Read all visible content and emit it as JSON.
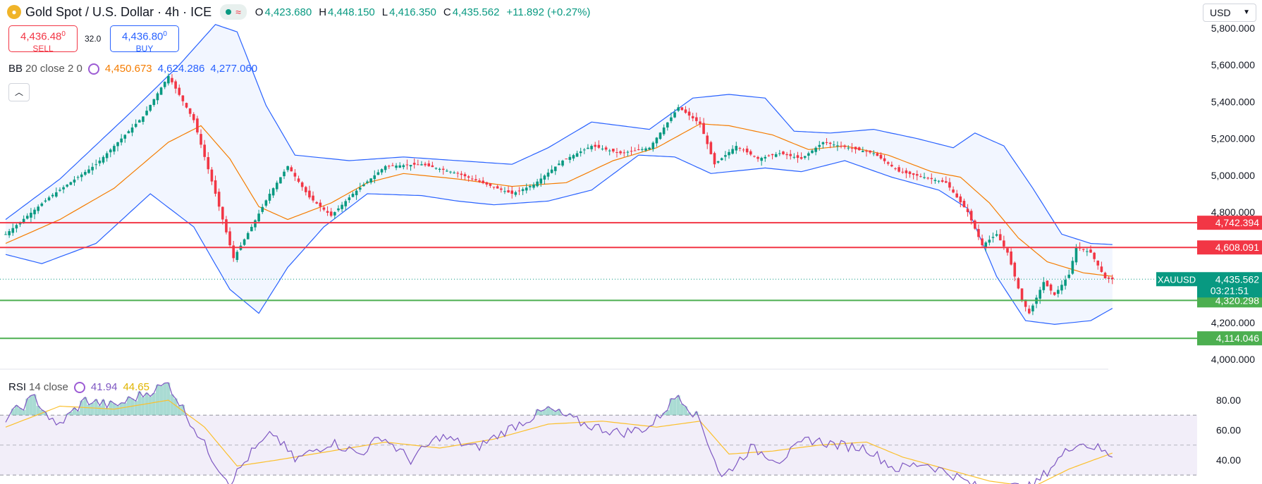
{
  "header": {
    "title": "Gold Spot / U.S. Dollar · 4h · ICE",
    "ohlc": [
      {
        "k": "O",
        "v": "4,423.680"
      },
      {
        "k": "H",
        "v": "4,448.150"
      },
      {
        "k": "L",
        "v": "4,416.350"
      },
      {
        "k": "C",
        "v": "4,435.562"
      }
    ],
    "change": "+11.892 (+0.27%)"
  },
  "trade": {
    "sell_price": "4,436.48",
    "sell_sup": "0",
    "sell_label": "SELL",
    "spread": "32.0",
    "buy_price": "4,436.80",
    "buy_sup": "0",
    "buy_label": "BUY"
  },
  "bb_legend": {
    "label": "BB",
    "params": "20 close 2 0",
    "basis": "4,450.673",
    "upper": "4,624.286",
    "lower": "4,277.060",
    "basis_color": "#f57c00",
    "band_color": "#2962ff"
  },
  "rsi_legend": {
    "label": "RSI",
    "params": "14 close",
    "rsi": "41.94",
    "ma": "44.65",
    "rsi_color": "#7e57c2",
    "ma_color": "#fdd835"
  },
  "currency": "USD",
  "symbol_tag": "XAUUSD",
  "last_price": "4,435.562",
  "countdown": "03:21:51",
  "colors": {
    "up": "#089981",
    "down": "#f23645",
    "resistance": "#f23645",
    "support": "#4caf50"
  },
  "chart_data": [
    {
      "type": "candlestick",
      "symbol": "XAUUSD",
      "timeframe": "4h",
      "ylim": [
        3950,
        5850
      ],
      "y_ticks": [
        "5,800.000",
        "5,600.000",
        "5,400.000",
        "5,200.000",
        "5,000.000",
        "4,800.000",
        "4,200.000",
        "4,000.000"
      ],
      "y_tick_values": [
        5800,
        5600,
        5400,
        5200,
        5000,
        4800,
        4200,
        4000
      ],
      "price_anchors": [
        {
          "i": 0,
          "p": 4680
        },
        {
          "i": 12,
          "p": 4880
        },
        {
          "i": 25,
          "p": 5060
        },
        {
          "i": 38,
          "p": 5320
        },
        {
          "i": 45,
          "p": 5540
        },
        {
          "i": 52,
          "p": 5300
        },
        {
          "i": 58,
          "p": 4900
        },
        {
          "i": 63,
          "p": 4550
        },
        {
          "i": 68,
          "p": 4720
        },
        {
          "i": 73,
          "p": 4900
        },
        {
          "i": 78,
          "p": 5050
        },
        {
          "i": 84,
          "p": 4880
        },
        {
          "i": 90,
          "p": 4780
        },
        {
          "i": 96,
          "p": 4900
        },
        {
          "i": 105,
          "p": 5050
        },
        {
          "i": 115,
          "p": 5060
        },
        {
          "i": 125,
          "p": 5010
        },
        {
          "i": 133,
          "p": 4950
        },
        {
          "i": 140,
          "p": 4900
        },
        {
          "i": 146,
          "p": 4950
        },
        {
          "i": 154,
          "p": 5080
        },
        {
          "i": 162,
          "p": 5160
        },
        {
          "i": 170,
          "p": 5120
        },
        {
          "i": 178,
          "p": 5150
        },
        {
          "i": 186,
          "p": 5370
        },
        {
          "i": 192,
          "p": 5280
        },
        {
          "i": 196,
          "p": 5060
        },
        {
          "i": 202,
          "p": 5160
        },
        {
          "i": 208,
          "p": 5090
        },
        {
          "i": 214,
          "p": 5120
        },
        {
          "i": 220,
          "p": 5090
        },
        {
          "i": 226,
          "p": 5180
        },
        {
          "i": 233,
          "p": 5150
        },
        {
          "i": 240,
          "p": 5120
        },
        {
          "i": 247,
          "p": 5020
        },
        {
          "i": 254,
          "p": 4990
        },
        {
          "i": 260,
          "p": 4960
        },
        {
          "i": 266,
          "p": 4800
        },
        {
          "i": 270,
          "p": 4620
        },
        {
          "i": 274,
          "p": 4680
        },
        {
          "i": 277,
          "p": 4580
        },
        {
          "i": 281,
          "p": 4320
        },
        {
          "i": 283,
          "p": 4250
        },
        {
          "i": 287,
          "p": 4420
        },
        {
          "i": 290,
          "p": 4350
        },
        {
          "i": 294,
          "p": 4460
        },
        {
          "i": 296,
          "p": 4610
        },
        {
          "i": 300,
          "p": 4580
        },
        {
          "i": 304,
          "p": 4440
        },
        {
          "i": 306,
          "p": 4435.562
        }
      ],
      "bb_upper_anchors": [
        {
          "i": 0,
          "p": 4760
        },
        {
          "i": 15,
          "p": 4980
        },
        {
          "i": 35,
          "p": 5350
        },
        {
          "i": 48,
          "p": 5600
        },
        {
          "i": 58,
          "p": 5820
        },
        {
          "i": 64,
          "p": 5780
        },
        {
          "i": 72,
          "p": 5380
        },
        {
          "i": 80,
          "p": 5110
        },
        {
          "i": 95,
          "p": 5080
        },
        {
          "i": 110,
          "p": 5100
        },
        {
          "i": 125,
          "p": 5080
        },
        {
          "i": 140,
          "p": 5060
        },
        {
          "i": 150,
          "p": 5150
        },
        {
          "i": 162,
          "p": 5290
        },
        {
          "i": 178,
          "p": 5250
        },
        {
          "i": 190,
          "p": 5420
        },
        {
          "i": 200,
          "p": 5440
        },
        {
          "i": 210,
          "p": 5420
        },
        {
          "i": 218,
          "p": 5240
        },
        {
          "i": 228,
          "p": 5230
        },
        {
          "i": 240,
          "p": 5250
        },
        {
          "i": 252,
          "p": 5200
        },
        {
          "i": 262,
          "p": 5150
        },
        {
          "i": 268,
          "p": 5230
        },
        {
          "i": 276,
          "p": 5160
        },
        {
          "i": 284,
          "p": 4930
        },
        {
          "i": 292,
          "p": 4680
        },
        {
          "i": 300,
          "p": 4630
        },
        {
          "i": 306,
          "p": 4624
        }
      ],
      "bb_lower_anchors": [
        {
          "i": 0,
          "p": 4570
        },
        {
          "i": 10,
          "p": 4520
        },
        {
          "i": 25,
          "p": 4630
        },
        {
          "i": 40,
          "p": 4900
        },
        {
          "i": 52,
          "p": 4720
        },
        {
          "i": 62,
          "p": 4380
        },
        {
          "i": 70,
          "p": 4250
        },
        {
          "i": 78,
          "p": 4500
        },
        {
          "i": 88,
          "p": 4720
        },
        {
          "i": 100,
          "p": 4900
        },
        {
          "i": 115,
          "p": 4890
        },
        {
          "i": 125,
          "p": 4860
        },
        {
          "i": 135,
          "p": 4840
        },
        {
          "i": 150,
          "p": 4860
        },
        {
          "i": 162,
          "p": 4920
        },
        {
          "i": 175,
          "p": 5110
        },
        {
          "i": 185,
          "p": 5100
        },
        {
          "i": 195,
          "p": 5010
        },
        {
          "i": 210,
          "p": 5040
        },
        {
          "i": 220,
          "p": 5020
        },
        {
          "i": 232,
          "p": 5080
        },
        {
          "i": 245,
          "p": 4990
        },
        {
          "i": 258,
          "p": 4920
        },
        {
          "i": 266,
          "p": 4820
        },
        {
          "i": 274,
          "p": 4450
        },
        {
          "i": 282,
          "p": 4210
        },
        {
          "i": 290,
          "p": 4190
        },
        {
          "i": 300,
          "p": 4210
        },
        {
          "i": 306,
          "p": 4277
        }
      ],
      "bb_basis_anchors": [
        {
          "i": 0,
          "p": 4630
        },
        {
          "i": 15,
          "p": 4760
        },
        {
          "i": 30,
          "p": 4930
        },
        {
          "i": 45,
          "p": 5180
        },
        {
          "i": 54,
          "p": 5270
        },
        {
          "i": 62,
          "p": 5090
        },
        {
          "i": 70,
          "p": 4830
        },
        {
          "i": 78,
          "p": 4760
        },
        {
          "i": 90,
          "p": 4850
        },
        {
          "i": 100,
          "p": 4960
        },
        {
          "i": 110,
          "p": 5010
        },
        {
          "i": 125,
          "p": 4980
        },
        {
          "i": 140,
          "p": 4940
        },
        {
          "i": 155,
          "p": 4960
        },
        {
          "i": 168,
          "p": 5080
        },
        {
          "i": 180,
          "p": 5150
        },
        {
          "i": 192,
          "p": 5280
        },
        {
          "i": 200,
          "p": 5270
        },
        {
          "i": 212,
          "p": 5220
        },
        {
          "i": 222,
          "p": 5140
        },
        {
          "i": 232,
          "p": 5160
        },
        {
          "i": 244,
          "p": 5110
        },
        {
          "i": 256,
          "p": 5020
        },
        {
          "i": 264,
          "p": 4990
        },
        {
          "i": 272,
          "p": 4850
        },
        {
          "i": 280,
          "p": 4660
        },
        {
          "i": 288,
          "p": 4530
        },
        {
          "i": 298,
          "p": 4470
        },
        {
          "i": 306,
          "p": 4451
        }
      ],
      "horizontal_levels": [
        {
          "value": 4742.394,
          "label": "4,742.394",
          "kind": "resistance"
        },
        {
          "value": 4608.091,
          "label": "4,608.091",
          "kind": "resistance"
        },
        {
          "value": 4320.298,
          "label": "4,320.298",
          "kind": "support"
        },
        {
          "value": 4114.046,
          "label": "4,114.046",
          "kind": "support"
        }
      ],
      "last_price": 4435.562
    },
    {
      "type": "line",
      "name": "RSI",
      "ylim": [
        25,
        95
      ],
      "y_ticks": [
        "80.00",
        "60.00",
        "40.00"
      ],
      "y_tick_values": [
        80,
        60,
        40
      ],
      "bands": [
        70,
        50,
        30
      ],
      "rsi_anchors": [
        {
          "i": 0,
          "v": 68
        },
        {
          "i": 8,
          "v": 82
        },
        {
          "i": 14,
          "v": 62
        },
        {
          "i": 22,
          "v": 80
        },
        {
          "i": 30,
          "v": 76
        },
        {
          "i": 38,
          "v": 84
        },
        {
          "i": 45,
          "v": 91
        },
        {
          "i": 52,
          "v": 62
        },
        {
          "i": 58,
          "v": 38
        },
        {
          "i": 62,
          "v": 25
        },
        {
          "i": 68,
          "v": 45
        },
        {
          "i": 74,
          "v": 58
        },
        {
          "i": 80,
          "v": 40
        },
        {
          "i": 90,
          "v": 52
        },
        {
          "i": 98,
          "v": 44
        },
        {
          "i": 104,
          "v": 56
        },
        {
          "i": 112,
          "v": 40
        },
        {
          "i": 120,
          "v": 56
        },
        {
          "i": 130,
          "v": 48
        },
        {
          "i": 140,
          "v": 62
        },
        {
          "i": 150,
          "v": 74
        },
        {
          "i": 160,
          "v": 64
        },
        {
          "i": 170,
          "v": 58
        },
        {
          "i": 178,
          "v": 62
        },
        {
          "i": 186,
          "v": 84
        },
        {
          "i": 192,
          "v": 66
        },
        {
          "i": 198,
          "v": 28
        },
        {
          "i": 206,
          "v": 48
        },
        {
          "i": 214,
          "v": 40
        },
        {
          "i": 222,
          "v": 54
        },
        {
          "i": 230,
          "v": 50
        },
        {
          "i": 238,
          "v": 48
        },
        {
          "i": 246,
          "v": 34
        },
        {
          "i": 254,
          "v": 38
        },
        {
          "i": 262,
          "v": 30
        },
        {
          "i": 270,
          "v": 20
        },
        {
          "i": 278,
          "v": 22
        },
        {
          "i": 284,
          "v": 22
        },
        {
          "i": 290,
          "v": 38
        },
        {
          "i": 296,
          "v": 52
        },
        {
          "i": 302,
          "v": 48
        },
        {
          "i": 306,
          "v": 41.94
        }
      ],
      "ma_anchors": [
        {
          "i": 0,
          "v": 62
        },
        {
          "i": 15,
          "v": 76
        },
        {
          "i": 30,
          "v": 74
        },
        {
          "i": 45,
          "v": 80
        },
        {
          "i": 55,
          "v": 62
        },
        {
          "i": 64,
          "v": 36
        },
        {
          "i": 75,
          "v": 40
        },
        {
          "i": 90,
          "v": 46
        },
        {
          "i": 105,
          "v": 52
        },
        {
          "i": 120,
          "v": 48
        },
        {
          "i": 135,
          "v": 54
        },
        {
          "i": 150,
          "v": 64
        },
        {
          "i": 165,
          "v": 66
        },
        {
          "i": 180,
          "v": 62
        },
        {
          "i": 192,
          "v": 66
        },
        {
          "i": 200,
          "v": 44
        },
        {
          "i": 212,
          "v": 46
        },
        {
          "i": 225,
          "v": 50
        },
        {
          "i": 238,
          "v": 52
        },
        {
          "i": 248,
          "v": 42
        },
        {
          "i": 260,
          "v": 34
        },
        {
          "i": 272,
          "v": 26
        },
        {
          "i": 284,
          "v": 22
        },
        {
          "i": 294,
          "v": 34
        },
        {
          "i": 306,
          "v": 44.65
        }
      ]
    }
  ]
}
